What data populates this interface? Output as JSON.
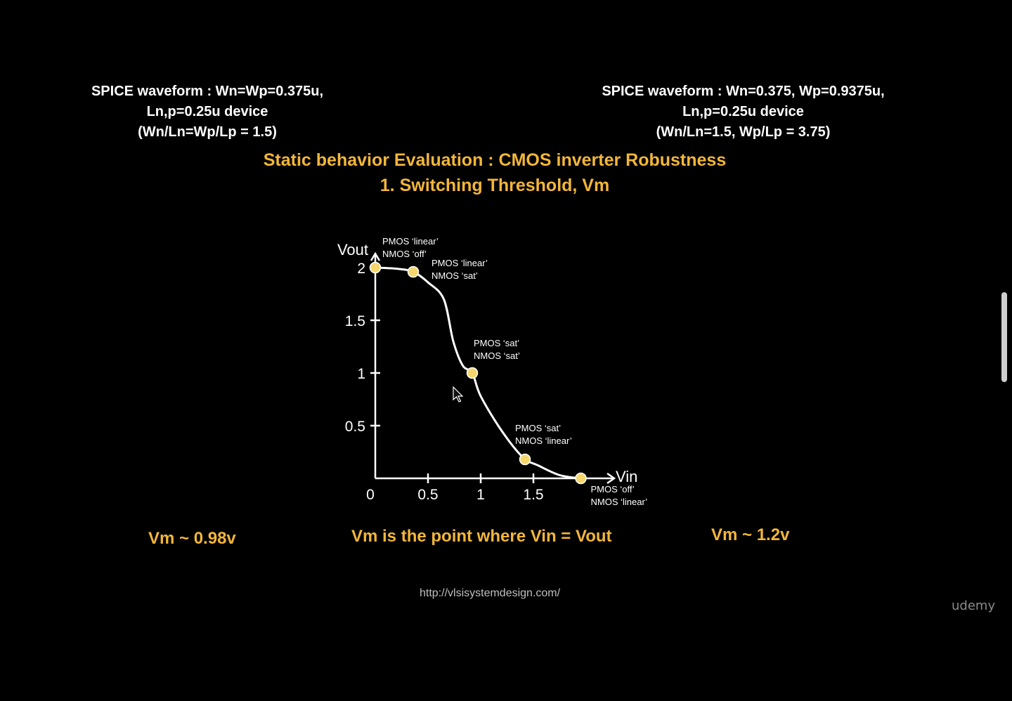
{
  "slide": {
    "left_caption": {
      "line1": "SPICE waveform : Wn=Wp=0.375u,",
      "line2": "Ln,p=0.25u device",
      "line3": "(Wn/Ln=Wp/Lp = 1.5)"
    },
    "right_caption": {
      "line1": "SPICE waveform : Wn=0.375, Wp=0.9375u,",
      "line2": "Ln,p=0.25u device",
      "line3": "(Wn/Ln=1.5, Wp/Lp = 3.75)"
    },
    "headline": {
      "line1": "Static behavior Evaluation : CMOS inverter Robustness",
      "line2": "1. Switching Threshold, Vm"
    },
    "left_vm": "Vm ~ 0.98v",
    "definition": "Vm is the point where Vin = Vout",
    "right_vm": "Vm ~ 1.2v",
    "footer_url": "http://vlsisystemdesign.com/",
    "brand": "udemy",
    "colors": {
      "accent": "#f2b63a",
      "background": "#000000",
      "point": "#f5d76e"
    }
  },
  "chart_data": {
    "type": "line",
    "xlabel": "Vin",
    "ylabel": "Vout",
    "xlim": [
      0,
      2.1
    ],
    "ylim": [
      0,
      2.1
    ],
    "x_ticks": [
      "0",
      "0.5",
      "1",
      "1.5"
    ],
    "y_ticks": [
      "0.5",
      "1",
      "1.5",
      "2"
    ],
    "curve": [
      [
        0.0,
        2.0
      ],
      [
        0.2,
        1.99
      ],
      [
        0.36,
        1.96
      ],
      [
        0.5,
        1.86
      ],
      [
        0.65,
        1.7
      ],
      [
        0.74,
        1.3
      ],
      [
        0.83,
        1.07
      ],
      [
        0.92,
        1.0
      ],
      [
        1.0,
        0.78
      ],
      [
        1.2,
        0.45
      ],
      [
        1.4,
        0.2
      ],
      [
        1.55,
        0.12
      ],
      [
        1.75,
        0.03
      ],
      [
        1.95,
        0.0
      ]
    ],
    "points": [
      {
        "x": 0.0,
        "y": 2.0,
        "label1": "PMOS ‘linear’",
        "label2": "NMOS ‘off’"
      },
      {
        "x": 0.36,
        "y": 1.96,
        "label1": "PMOS ‘linear’",
        "label2": "NMOS ‘sat’"
      },
      {
        "x": 0.92,
        "y": 1.0,
        "label1": "PMOS ‘sat’",
        "label2": "NMOS ‘sat’"
      },
      {
        "x": 1.42,
        "y": 0.18,
        "label1": "PMOS ‘sat’",
        "label2": "NMOS ‘linear’"
      },
      {
        "x": 1.95,
        "y": 0.0,
        "label1": "PMOS ‘off’",
        "label2": "NMOS ‘linear’"
      }
    ]
  }
}
